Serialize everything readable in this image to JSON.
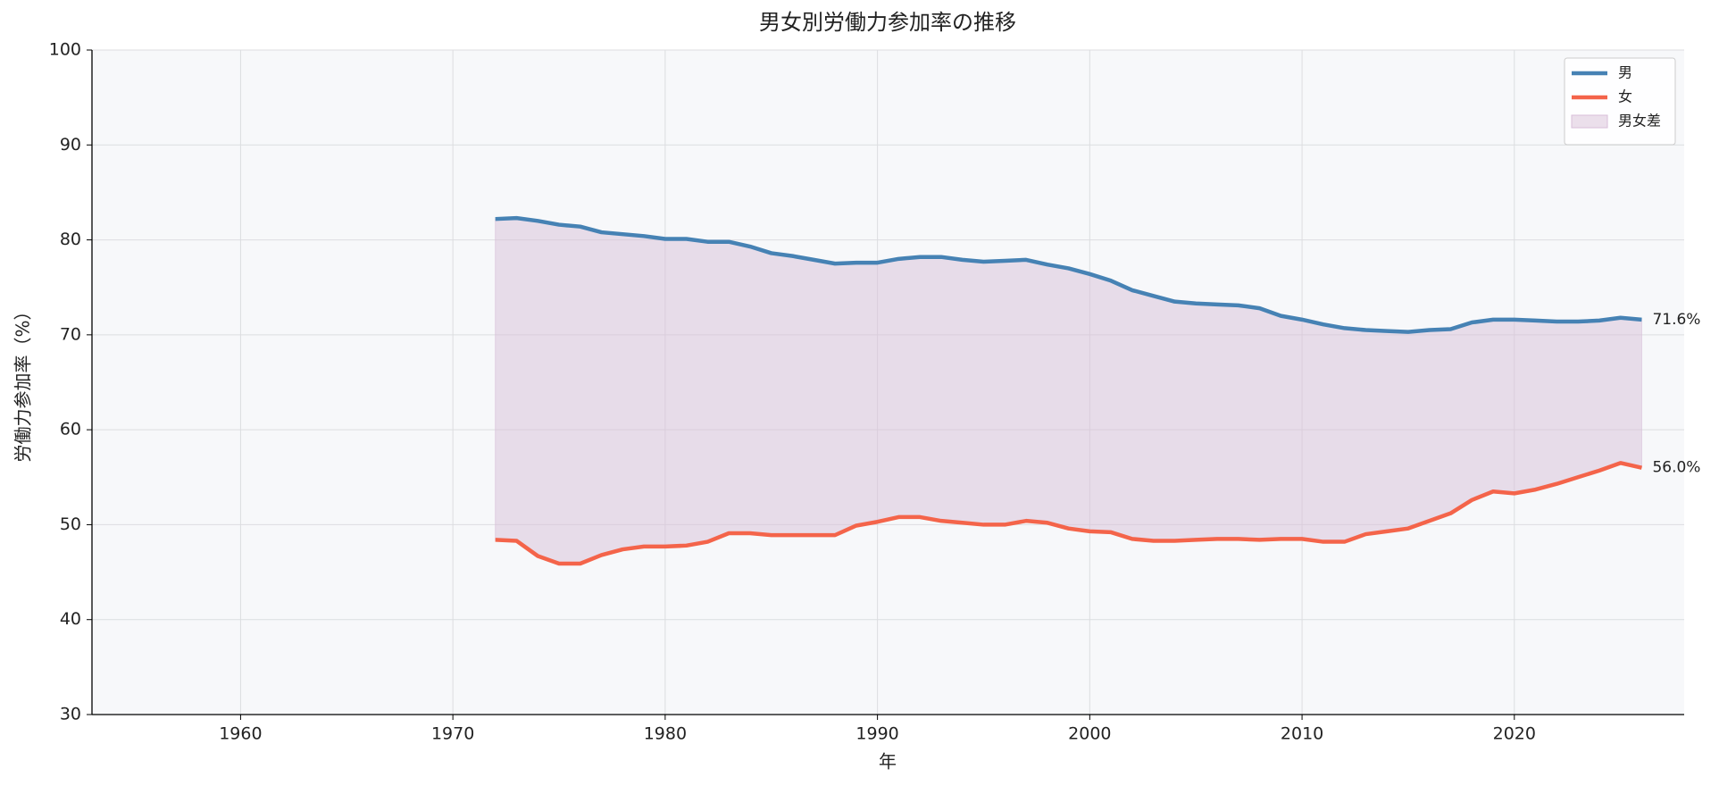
{
  "chart_data": {
    "type": "line",
    "title": "男女別労働力参加率の推移",
    "x_label": "年",
    "y_label": "労働力参加率（%）",
    "x": [
      1972,
      1973,
      1974,
      1975,
      1976,
      1977,
      1978,
      1979,
      1980,
      1981,
      1982,
      1983,
      1984,
      1985,
      1986,
      1987,
      1988,
      1989,
      1990,
      1991,
      1992,
      1993,
      1994,
      1995,
      1996,
      1997,
      1998,
      1999,
      2000,
      2001,
      2002,
      2003,
      2004,
      2005,
      2006,
      2007,
      2008,
      2009,
      2010,
      2011,
      2012,
      2013,
      2014,
      2015,
      2016,
      2017,
      2018,
      2019,
      2020,
      2021,
      2022,
      2023,
      2024,
      2025,
      2026
    ],
    "series": [
      {
        "name": "男",
        "color": "#4682b4",
        "values": [
          82.2,
          82.3,
          82.0,
          81.6,
          81.4,
          80.8,
          80.6,
          80.4,
          80.1,
          80.1,
          79.8,
          79.8,
          79.3,
          78.6,
          78.3,
          77.9,
          77.5,
          77.6,
          77.6,
          78.0,
          78.2,
          78.2,
          77.9,
          77.7,
          77.8,
          77.9,
          77.4,
          77.0,
          76.4,
          75.7,
          74.7,
          74.1,
          73.5,
          73.3,
          73.2,
          73.1,
          72.8,
          72.0,
          71.6,
          71.1,
          70.7,
          70.5,
          70.4,
          70.3,
          70.5,
          70.6,
          71.3,
          71.6,
          71.6,
          71.5,
          71.4,
          71.4,
          71.5,
          71.8,
          71.6
        ],
        "value_labels": [
          null,
          null,
          null,
          null,
          null,
          null,
          null,
          null,
          null,
          null,
          null,
          null,
          null,
          null,
          null,
          null,
          null,
          null,
          null,
          null,
          null,
          null,
          null,
          null,
          null,
          null,
          null,
          null,
          null,
          null,
          null,
          null,
          null,
          null,
          null,
          null,
          null,
          null,
          null,
          null,
          null,
          null,
          null,
          null,
          null,
          null,
          null,
          null,
          null,
          null,
          null,
          null,
          null,
          null,
          "71.6%"
        ]
      },
      {
        "name": "女",
        "color": "#f4644a",
        "values": [
          48.4,
          48.3,
          46.7,
          45.9,
          45.9,
          46.8,
          47.4,
          47.7,
          47.7,
          47.8,
          48.2,
          49.1,
          49.1,
          48.9,
          48.9,
          48.9,
          48.9,
          49.9,
          50.3,
          50.8,
          50.8,
          50.4,
          50.2,
          50.0,
          50.0,
          50.4,
          50.2,
          49.6,
          49.3,
          49.2,
          48.5,
          48.3,
          48.3,
          48.4,
          48.5,
          48.5,
          48.4,
          48.5,
          48.5,
          48.2,
          48.2,
          49.0,
          49.3,
          49.6,
          50.4,
          51.2,
          52.6,
          53.5,
          53.3,
          53.7,
          54.3,
          55.0,
          55.7,
          56.5,
          56.0
        ],
        "value_labels": [
          null,
          null,
          null,
          null,
          null,
          null,
          null,
          null,
          null,
          null,
          null,
          null,
          null,
          null,
          null,
          null,
          null,
          null,
          null,
          null,
          null,
          null,
          null,
          null,
          null,
          null,
          null,
          null,
          null,
          null,
          null,
          null,
          null,
          null,
          null,
          null,
          null,
          null,
          null,
          null,
          null,
          null,
          null,
          null,
          null,
          null,
          null,
          null,
          null,
          null,
          null,
          null,
          null,
          null,
          "56.0%"
        ]
      }
    ],
    "fill_between": {
      "name": "男女差",
      "color": "#d8bfd8"
    },
    "xlim": [
      1953,
      2028
    ],
    "xticks": [
      1960,
      1970,
      1980,
      1990,
      2000,
      2010,
      2020
    ],
    "ylim": [
      30,
      100
    ],
    "yticks": [
      30,
      40,
      50,
      60,
      70,
      80,
      90,
      100
    ],
    "grid": true,
    "legend": "upper right"
  }
}
